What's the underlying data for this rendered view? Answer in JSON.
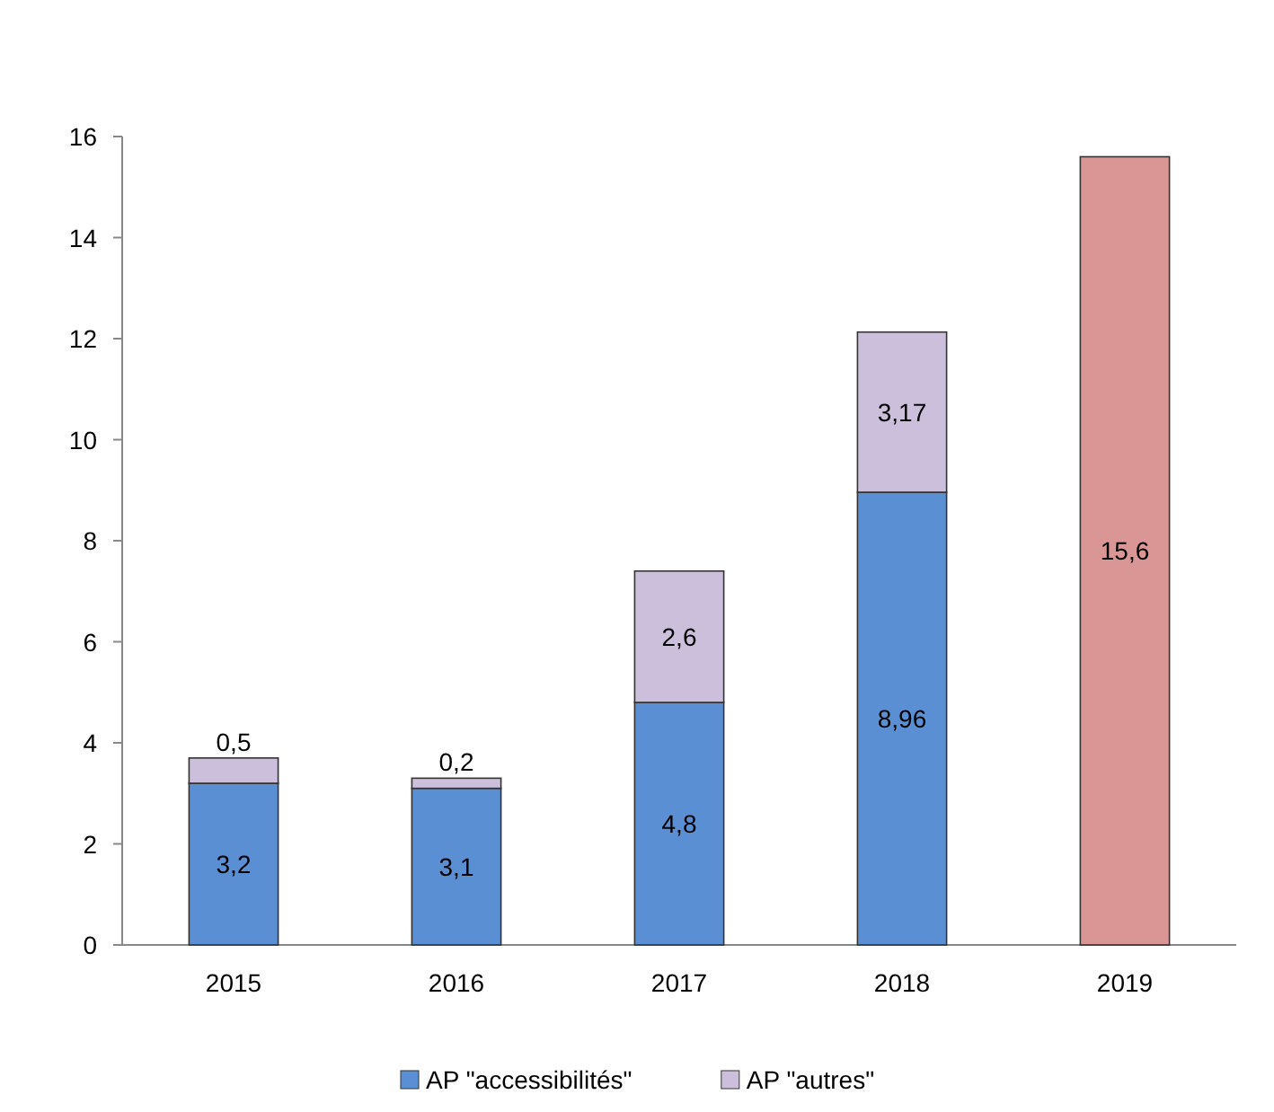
{
  "chart_data": {
    "type": "bar",
    "stacked": true,
    "categories": [
      "2015",
      "2016",
      "2017",
      "2018",
      "2019"
    ],
    "series": [
      {
        "name": "AP \"accessibilités\"",
        "color": "#5b8fd4",
        "values": [
          3.2,
          3.1,
          4.8,
          8.96,
          null
        ],
        "value_labels": [
          "3,2",
          "3,1",
          "4,8",
          "8,96",
          null
        ]
      },
      {
        "name": "AP \"autres\"",
        "color": "#cbbfdc",
        "values": [
          0.5,
          0.2,
          2.6,
          3.17,
          null
        ],
        "value_labels": [
          "0,5",
          "0,2",
          "2,6",
          "3,17",
          null
        ]
      },
      {
        "color": "#d99694",
        "values": [
          null,
          null,
          null,
          null,
          15.6
        ],
        "value_labels": [
          null,
          null,
          null,
          null,
          "15,6"
        ]
      }
    ],
    "ylim": [
      0,
      16
    ],
    "yticks": [
      0,
      2,
      4,
      6,
      8,
      10,
      12,
      14,
      16
    ],
    "grid": false,
    "legend": "bottom"
  }
}
